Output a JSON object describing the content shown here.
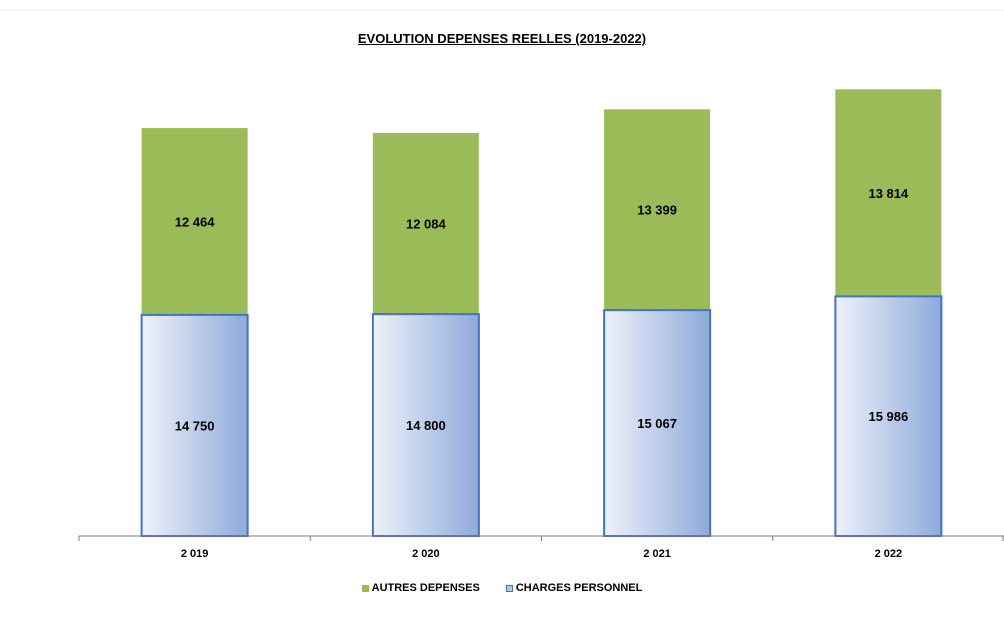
{
  "chart_data": {
    "type": "bar",
    "stacked": true,
    "title": "EVOLUTION DEPENSES REELLES (2019-2022)",
    "categories": [
      "2 019",
      "2 020",
      "2 021",
      "2 022"
    ],
    "series": [
      {
        "name": "CHARGES PERSONNEL",
        "values": [
          14750,
          14800,
          15067,
          15986
        ],
        "labels": [
          "14 750",
          "14 800",
          "15 067",
          "15 986"
        ],
        "color": "#b4c7e7",
        "border_color": "#4472c4"
      },
      {
        "name": "AUTRES DEPENSES",
        "values": [
          12464,
          12084,
          13399,
          13814
        ],
        "labels": [
          "12 464",
          "12 084",
          "13 399",
          "13 814"
        ],
        "color": "#9bbb59"
      }
    ],
    "legend": {
      "position": "bottom",
      "order": [
        "AUTRES DEPENSES",
        "CHARGES PERSONNEL"
      ]
    },
    "grid": false,
    "y_axis_visible": false
  }
}
